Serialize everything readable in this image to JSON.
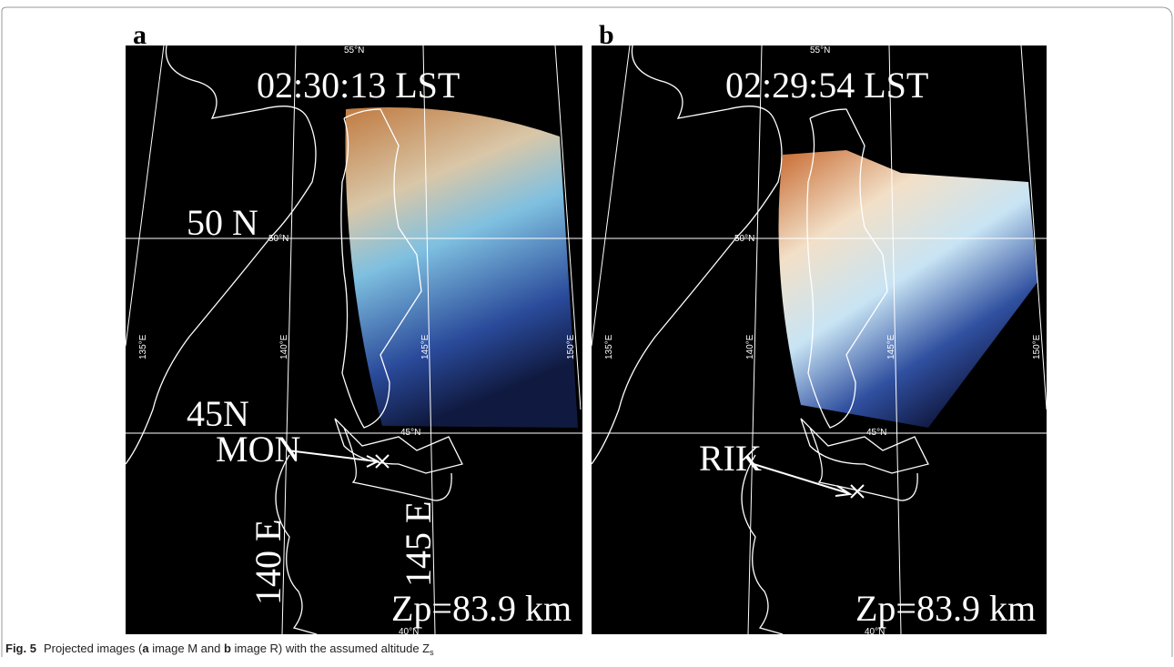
{
  "panels": [
    {
      "label": "a",
      "time": "02:30:13 LST",
      "lat50": "50 N",
      "lat45": "45N",
      "station": "MON",
      "lon140": "140 E",
      "lon145": "145 E",
      "altitude": "Zp=83.9 km",
      "grid_labels": [
        "55°N",
        "50°N",
        "45°N",
        "40°N",
        "135°E",
        "140°E",
        "145°E",
        "150°E"
      ]
    },
    {
      "label": "b",
      "time": "02:29:54 LST",
      "station": "RIK",
      "altitude": "Zp=83.9 km",
      "grid_labels": [
        "55°N",
        "50°N",
        "45°N",
        "40°N",
        "135°E",
        "140°E",
        "145°E",
        "150°E"
      ]
    }
  ],
  "caption": {
    "label": "Fig. 5",
    "text_1": "Projected images (",
    "bold_1": "a",
    "text_2": " image M and ",
    "bold_2": "b",
    "text_3": " image R) with the assumed altitude Z",
    "subscript": "s"
  }
}
